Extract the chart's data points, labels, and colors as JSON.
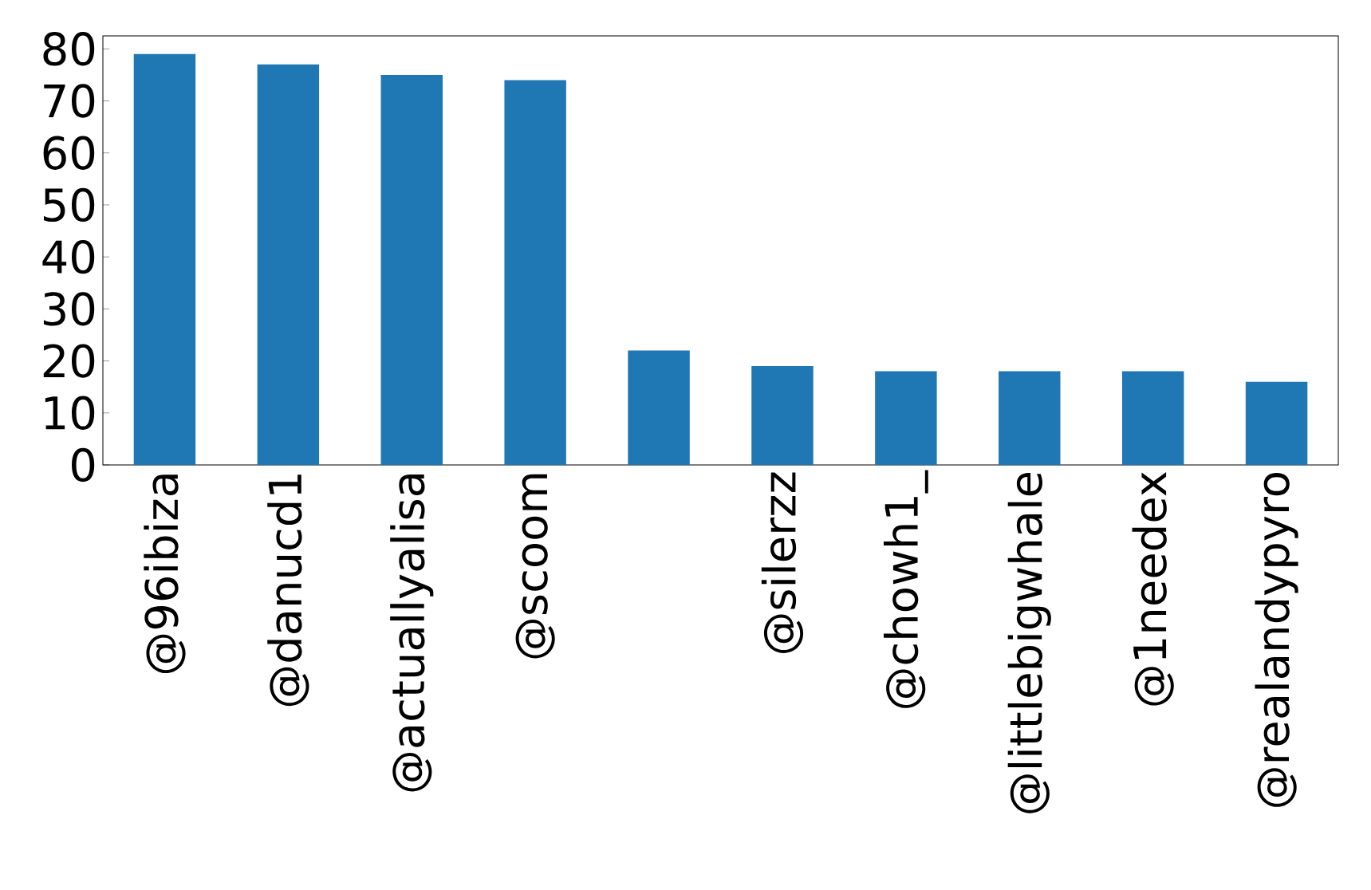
{
  "chart_data": {
    "type": "bar",
    "categories": [
      "@96ibiza",
      "@danucd1",
      "@actuallyalisa",
      "@scoom",
      null,
      "@silerzz",
      "@chowh1_",
      "@littlebigwhale",
      "@1needex",
      "@realandypyro"
    ],
    "values": [
      79,
      77,
      75,
      74,
      22,
      19,
      18,
      18,
      18,
      16
    ],
    "color": "#1f77b4",
    "ylim": [
      0,
      82.5
    ],
    "yticks": [
      0,
      10,
      20,
      30,
      40,
      50,
      60,
      70,
      80
    ]
  }
}
